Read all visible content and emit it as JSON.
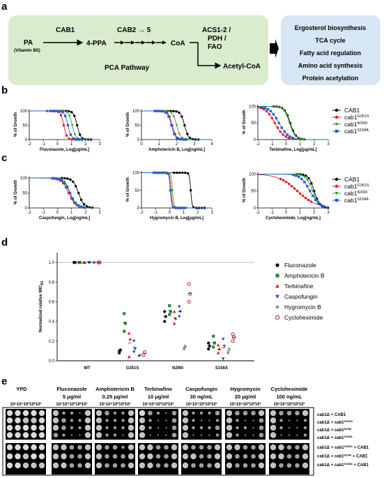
{
  "panel_letters": [
    "a",
    "b",
    "c",
    "d",
    "e"
  ],
  "panel_a": {
    "pathway": {
      "start": "PA",
      "start_sub": "(Vitamin B5)",
      "step1": "CAB1",
      "intermediate": "4-PPA",
      "step2": "CAB2 → 5",
      "product": "CoA",
      "step3": "ACS1-2 /",
      "step3b": "PDH /",
      "step3c": "FAO",
      "end": "Acetyl-CoA",
      "name": "PCA Pathway"
    },
    "functions": [
      "Ergosterol biosynthesis",
      "TCA cycle",
      "Fatty acid regulation",
      "Amino acid synthesis",
      "Protein acetylation"
    ],
    "colors": {
      "pathway_bg": "#d9eccd",
      "function_bg": "#d6e6f4"
    }
  },
  "dose_legend": [
    "CAB1",
    "cab1",
    "cab1",
    "cab1"
  ],
  "dose_legend_sup": [
    "",
    "G351S",
    "N290I",
    "S158A"
  ],
  "series_colors": [
    "#000000",
    "#e31a1c",
    "#33a02c",
    "#1f5fe0"
  ],
  "dose_charts": [
    {
      "id": "b1",
      "ylabel": "% of Growth",
      "xlabel": "Fluconazole, Log[μg/mL]",
      "xticks": [
        "-2",
        "-1",
        "0",
        "1",
        "2",
        "3"
      ],
      "yticks": [
        "0",
        "50",
        "100"
      ],
      "xlim": [
        -2,
        3
      ],
      "ic50": [
        1.4,
        0.45,
        1.05,
        0.75
      ],
      "slope": [
        8,
        9,
        8,
        8
      ]
    },
    {
      "id": "b2",
      "ylabel": "% of Growth",
      "xlabel": "Amphotericin B, Log[ng/mL]",
      "xticks": [
        "0",
        "1",
        "2",
        "3",
        "4"
      ],
      "yticks": [
        "0",
        "50",
        "100"
      ],
      "xlim": [
        0,
        4
      ],
      "ic50": [
        2.45,
        1.75,
        2.0,
        1.7
      ],
      "slope": [
        9,
        9,
        9,
        9
      ]
    },
    {
      "id": "b3",
      "ylabel": "% of Growth",
      "xlabel": "Terbinafine, Log[μg/mL]",
      "xticks": [
        "-2",
        "-1",
        "0",
        "1",
        "2",
        "3"
      ],
      "yticks": [
        "0",
        "50",
        "100"
      ],
      "xlim": [
        -2,
        3
      ],
      "ic50": [
        0.3,
        -0.8,
        0.25,
        -0.5
      ],
      "slope": [
        5,
        3,
        5,
        3
      ]
    },
    {
      "id": "c1",
      "ylabel": "% of Growth",
      "xlabel": "Caspofungin, Log[ng/mL]",
      "xticks": [
        "-2",
        "-1",
        "0",
        "1",
        "2",
        "3"
      ],
      "yticks": [
        "0",
        "50",
        "100"
      ],
      "xlim": [
        -2,
        3
      ],
      "ic50": [
        1.5,
        0.8,
        0.9,
        0.9
      ],
      "slope": [
        5,
        4,
        5,
        4
      ]
    },
    {
      "id": "c2",
      "ylabel": "% of Growth",
      "xlabel": "Hygromycin B, Log[μg/mL]",
      "xticks": [
        "-2",
        "-1",
        "0",
        "1",
        "2",
        "3"
      ],
      "yticks": [
        "0",
        "50",
        "100"
      ],
      "xlim": [
        -2,
        3
      ],
      "ic50": [
        1.5,
        0.1,
        0.2,
        0.05
      ],
      "slope": [
        20,
        20,
        20,
        20
      ]
    },
    {
      "id": "c3",
      "ylabel": "% of Growth",
      "xlabel": "Cycloheximide, Log[ng/mL]",
      "xticks": [
        "-2",
        "-1",
        "0",
        "1",
        "2",
        "3"
      ],
      "yticks": [
        "0",
        "50",
        "100"
      ],
      "xlim": [
        -2,
        3
      ],
      "ic50": [
        2.0,
        0.8,
        1.9,
        1.7
      ],
      "slope": [
        5,
        1.5,
        4,
        3
      ]
    }
  ],
  "panel_d": {
    "ylabel": "Normalized relative MIC",
    "ylabel_sub": "50",
    "yticks": [
      "0.0",
      "0.2",
      "0.4",
      "0.6",
      "0.8",
      "1.0"
    ],
    "ylim": [
      0,
      1.1
    ],
    "categories": [
      "WT",
      "G351S",
      "N290I",
      "S158A"
    ],
    "legend": [
      "Fluconazole",
      "Amphotericin B",
      "Terbinafine",
      "Caspofungin",
      "Hygromycin B",
      "Cycloheximide"
    ],
    "colors": [
      "#000000",
      "#2e8b3a",
      "#e31a1c",
      "#1f4fe0",
      "#8c8c8c",
      "#c0143c"
    ],
    "values": [
      [
        [
          1.0,
          1.0
        ],
        [
          1.0,
          1.0
        ],
        [
          1.0,
          1.0
        ],
        [
          1.0,
          1.0
        ],
        [
          1.0,
          1.0
        ],
        [
          1.0,
          1.0
        ]
      ],
      [
        [
          0.08,
          0.11,
          0.1
        ],
        [
          0.3,
          0.38,
          0.48
        ],
        [
          0.04,
          0.22,
          0.28
        ],
        [
          0.09,
          0.12,
          0.2
        ],
        [
          0.05,
          0.06
        ],
        [
          0.06,
          0.09
        ]
      ],
      [
        [
          0.4,
          0.45,
          0.5
        ],
        [
          0.47,
          0.5,
          0.56
        ],
        [
          0.38,
          0.43,
          0.5
        ],
        [
          0.45,
          0.5,
          0.55
        ],
        [
          0.12,
          0.15
        ],
        [
          0.6,
          0.68,
          0.78
        ]
      ],
      [
        [
          0.12,
          0.15,
          0.18
        ],
        [
          0.14,
          0.18,
          0.25
        ],
        [
          0.08,
          0.12,
          0.16
        ],
        [
          0.02,
          0.15,
          0.22
        ],
        [
          0.08,
          0.12
        ],
        [
          0.2,
          0.24,
          0.27
        ]
      ]
    ]
  },
  "panel_e": {
    "conditions": [
      {
        "name": "YPD",
        "conc": ""
      },
      {
        "name": "Fluconazole",
        "conc": "5 μg/ml"
      },
      {
        "name": "Amphotericin B",
        "conc": "0.25 μg/ml"
      },
      {
        "name": "Terbinafine",
        "conc": "10 μg/ml"
      },
      {
        "name": "Caspofungin",
        "conc": "30 ng/mL"
      },
      {
        "name": "Hygromycin",
        "conc": "20 μg/ml"
      },
      {
        "name": "Cycloheximide",
        "conc": "100 ng/mL"
      }
    ],
    "dilutions": "10⁵10⁴10³10²10¹",
    "strains": [
      {
        "a": "cab1Δ + ",
        "b": "CAB1",
        "sup": "",
        "c": ""
      },
      {
        "a": "cab1Δ + cab1",
        "b": "",
        "sup": "G351S",
        "c": ""
      },
      {
        "a": "cab1Δ + cab1",
        "b": "",
        "sup": "N290I",
        "c": ""
      },
      {
        "a": "cab1Δ + cab1",
        "b": "",
        "sup": "S158A",
        "c": ""
      },
      {
        "a": "cab1Δ + cab1",
        "b": "",
        "sup": "G351S",
        "c": " + CAB1"
      },
      {
        "a": "cab1Δ + cab1",
        "b": "",
        "sup": "N290I",
        "c": " + CAB1"
      },
      {
        "a": "cab1Δ + cab1",
        "b": "",
        "sup": "S158A",
        "c": " + CAB1"
      }
    ],
    "growth": [
      [
        [
          5,
          5,
          5,
          5,
          5,
          5,
          5
        ],
        [
          5,
          5,
          4,
          4,
          5,
          5,
          5
        ],
        [
          5,
          5,
          5,
          5,
          5,
          5,
          5
        ],
        [
          5,
          5,
          5,
          5,
          5,
          5,
          5
        ],
        [
          5,
          5,
          5,
          5,
          5,
          5,
          5
        ],
        [
          5,
          5,
          4,
          5,
          5,
          5,
          5
        ],
        [
          5,
          5,
          4,
          4,
          4,
          4,
          4
        ]
      ],
      [
        [
          4,
          2,
          2,
          1,
          4,
          4,
          4
        ],
        [
          4,
          3,
          2,
          2,
          4,
          4,
          4
        ],
        [
          4,
          3,
          2,
          2,
          4,
          4,
          4
        ],
        [
          3,
          2,
          1,
          1,
          4,
          4,
          4
        ],
        [
          4,
          4,
          3,
          3,
          4,
          4,
          4
        ],
        [
          4,
          4,
          3,
          3,
          4,
          4,
          4
        ],
        [
          4,
          4,
          3,
          3,
          4,
          4,
          4
        ]
      ],
      [
        [
          4,
          3,
          2,
          2,
          4,
          4,
          4
        ],
        [
          4,
          2,
          2,
          2,
          4,
          4,
          4
        ],
        [
          4,
          2,
          2,
          2,
          4,
          4,
          4
        ],
        [
          4,
          2,
          2,
          1,
          4,
          4,
          4
        ],
        [
          4,
          3,
          3,
          2,
          4,
          4,
          4
        ],
        [
          4,
          3,
          3,
          3,
          4,
          4,
          4
        ],
        [
          4,
          3,
          3,
          3,
          4,
          4,
          4
        ]
      ],
      [
        [
          5,
          3,
          2,
          1,
          3,
          3,
          4
        ],
        [
          4,
          2,
          1,
          1,
          3,
          3,
          3
        ],
        [
          4,
          2,
          1,
          1,
          3,
          3,
          3
        ],
        [
          4,
          1,
          1,
          1,
          3,
          3,
          3
        ],
        [
          4,
          4,
          3,
          3,
          4,
          4,
          4
        ],
        [
          4,
          4,
          3,
          3,
          4,
          4,
          4
        ],
        [
          4,
          4,
          3,
          3,
          4,
          4,
          4
        ]
      ],
      [
        [
          4,
          2,
          2,
          2,
          3,
          3,
          4
        ],
        [
          4,
          2,
          1,
          1,
          2,
          3,
          3
        ],
        [
          4,
          2,
          2,
          2,
          3,
          3,
          4
        ],
        [
          4,
          1,
          1,
          1,
          2,
          3,
          3
        ],
        [
          4,
          3,
          3,
          3,
          4,
          4,
          4
        ],
        [
          4,
          4,
          3,
          3,
          4,
          4,
          4
        ],
        [
          4,
          3,
          3,
          3,
          4,
          4,
          4
        ]
      ],
      [
        [
          4,
          3,
          3,
          3,
          4,
          4,
          4
        ],
        [
          4,
          2,
          1,
          1,
          3,
          1,
          1
        ],
        [
          4,
          2,
          2,
          1,
          3,
          2,
          1
        ],
        [
          4,
          2,
          1,
          1,
          3,
          1,
          1
        ],
        [
          4,
          4,
          3,
          3,
          4,
          4,
          4
        ],
        [
          4,
          3,
          3,
          3,
          4,
          4,
          4
        ],
        [
          4,
          3,
          3,
          3,
          4,
          4,
          4
        ]
      ],
      [
        [
          4,
          3,
          3,
          3,
          4,
          4,
          4
        ],
        [
          4,
          2,
          1,
          1,
          2,
          1,
          1
        ],
        [
          4,
          2,
          1,
          1,
          2,
          2,
          1
        ],
        [
          4,
          1,
          1,
          1,
          2,
          1,
          1
        ],
        [
          4,
          4,
          3,
          3,
          4,
          4,
          4
        ],
        [
          4,
          4,
          3,
          3,
          4,
          4,
          4
        ],
        [
          4,
          3,
          3,
          3,
          4,
          4,
          4
        ]
      ]
    ]
  }
}
